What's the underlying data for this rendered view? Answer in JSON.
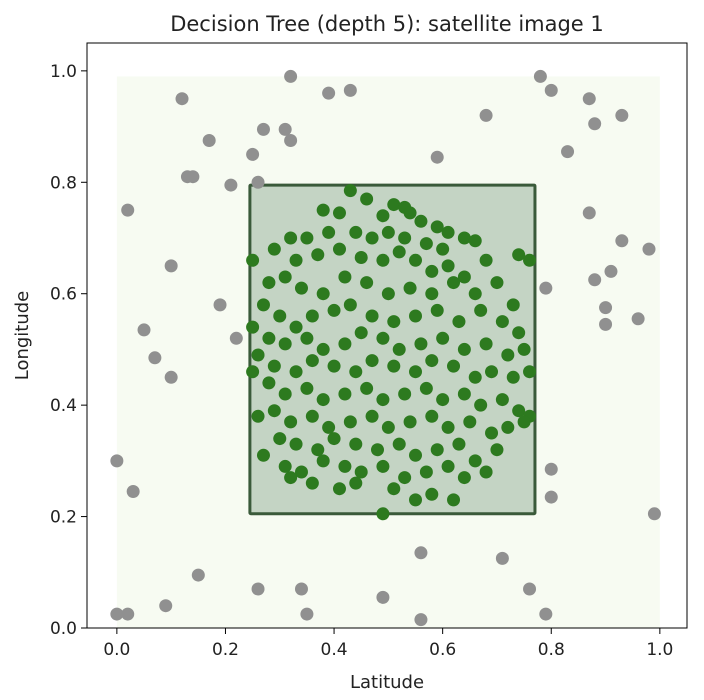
{
  "chart_data": {
    "type": "scatter",
    "title": "Decision Tree (depth 5): satellite image 1",
    "xlabel": "Latitude",
    "ylabel": "Longitude",
    "xlim": [
      -0.055,
      1.05
    ],
    "ylim": [
      0.0,
      1.05
    ],
    "xticks": [
      "0.0",
      "0.2",
      "0.4",
      "0.6",
      "0.8",
      "1.0"
    ],
    "yticks": [
      "0.0",
      "0.2",
      "0.4",
      "0.6",
      "0.8",
      "1.0"
    ],
    "grid": false,
    "background_region": {
      "x": [
        0.0,
        1.0
      ],
      "y": [
        0.0,
        0.99
      ],
      "color": "#f7fbf2"
    },
    "decision_region": {
      "x": [
        0.245,
        0.77
      ],
      "y": [
        0.205,
        0.795
      ],
      "fill": "#c4d4c4",
      "edge": "#3a5a3a"
    },
    "colors": {
      "inside": "#2d7a1f",
      "outside": "#909090"
    },
    "series": [
      {
        "class": "outside",
        "color": "#909090",
        "points": [
          [
            0.32,
            0.99
          ],
          [
            0.39,
            0.96
          ],
          [
            0.43,
            0.965
          ],
          [
            0.78,
            0.99
          ],
          [
            0.8,
            0.965
          ],
          [
            0.12,
            0.95
          ],
          [
            0.87,
            0.95
          ],
          [
            0.68,
            0.92
          ],
          [
            0.93,
            0.92
          ],
          [
            0.88,
            0.905
          ],
          [
            0.17,
            0.875
          ],
          [
            0.27,
            0.895
          ],
          [
            0.31,
            0.895
          ],
          [
            0.32,
            0.875
          ],
          [
            0.59,
            0.845
          ],
          [
            0.83,
            0.855
          ],
          [
            0.25,
            0.85
          ],
          [
            0.13,
            0.81
          ],
          [
            0.14,
            0.81
          ],
          [
            0.21,
            0.795
          ],
          [
            0.26,
            0.8
          ],
          [
            0.02,
            0.75
          ],
          [
            0.87,
            0.745
          ],
          [
            0.1,
            0.65
          ],
          [
            0.93,
            0.695
          ],
          [
            0.98,
            0.68
          ],
          [
            0.88,
            0.625
          ],
          [
            0.91,
            0.64
          ],
          [
            0.79,
            0.61
          ],
          [
            0.05,
            0.535
          ],
          [
            0.19,
            0.58
          ],
          [
            0.9,
            0.575
          ],
          [
            0.9,
            0.545
          ],
          [
            0.96,
            0.555
          ],
          [
            0.22,
            0.52
          ],
          [
            0.07,
            0.485
          ],
          [
            0.1,
            0.45
          ],
          [
            0.0,
            0.3
          ],
          [
            0.03,
            0.245
          ],
          [
            0.8,
            0.285
          ],
          [
            0.8,
            0.235
          ],
          [
            0.99,
            0.205
          ],
          [
            0.15,
            0.095
          ],
          [
            0.56,
            0.135
          ],
          [
            0.71,
            0.125
          ],
          [
            0.0,
            0.025
          ],
          [
            0.02,
            0.025
          ],
          [
            0.09,
            0.04
          ],
          [
            0.26,
            0.07
          ],
          [
            0.34,
            0.07
          ],
          [
            0.35,
            0.025
          ],
          [
            0.49,
            0.055
          ],
          [
            0.56,
            0.015
          ],
          [
            0.76,
            0.07
          ],
          [
            0.79,
            0.025
          ]
        ]
      },
      {
        "class": "inside",
        "color": "#2d7a1f",
        "points": [
          [
            0.43,
            0.785
          ],
          [
            0.46,
            0.77
          ],
          [
            0.51,
            0.76
          ],
          [
            0.53,
            0.755
          ],
          [
            0.54,
            0.745
          ],
          [
            0.38,
            0.75
          ],
          [
            0.41,
            0.745
          ],
          [
            0.49,
            0.74
          ],
          [
            0.56,
            0.73
          ],
          [
            0.59,
            0.72
          ],
          [
            0.61,
            0.71
          ],
          [
            0.64,
            0.7
          ],
          [
            0.32,
            0.7
          ],
          [
            0.35,
            0.7
          ],
          [
            0.39,
            0.71
          ],
          [
            0.44,
            0.71
          ],
          [
            0.47,
            0.7
          ],
          [
            0.5,
            0.71
          ],
          [
            0.53,
            0.7
          ],
          [
            0.57,
            0.69
          ],
          [
            0.6,
            0.68
          ],
          [
            0.66,
            0.695
          ],
          [
            0.29,
            0.68
          ],
          [
            0.33,
            0.66
          ],
          [
            0.37,
            0.67
          ],
          [
            0.41,
            0.68
          ],
          [
            0.45,
            0.665
          ],
          [
            0.49,
            0.66
          ],
          [
            0.52,
            0.675
          ],
          [
            0.55,
            0.66
          ],
          [
            0.58,
            0.64
          ],
          [
            0.61,
            0.65
          ],
          [
            0.64,
            0.63
          ],
          [
            0.68,
            0.66
          ],
          [
            0.74,
            0.67
          ],
          [
            0.76,
            0.66
          ],
          [
            0.25,
            0.66
          ],
          [
            0.28,
            0.62
          ],
          [
            0.31,
            0.63
          ],
          [
            0.34,
            0.61
          ],
          [
            0.38,
            0.6
          ],
          [
            0.42,
            0.63
          ],
          [
            0.46,
            0.62
          ],
          [
            0.5,
            0.6
          ],
          [
            0.54,
            0.61
          ],
          [
            0.58,
            0.6
          ],
          [
            0.62,
            0.62
          ],
          [
            0.66,
            0.6
          ],
          [
            0.7,
            0.62
          ],
          [
            0.73,
            0.58
          ],
          [
            0.27,
            0.58
          ],
          [
            0.3,
            0.56
          ],
          [
            0.33,
            0.54
          ],
          [
            0.36,
            0.56
          ],
          [
            0.4,
            0.57
          ],
          [
            0.43,
            0.58
          ],
          [
            0.47,
            0.56
          ],
          [
            0.51,
            0.55
          ],
          [
            0.55,
            0.56
          ],
          [
            0.59,
            0.57
          ],
          [
            0.63,
            0.55
          ],
          [
            0.67,
            0.57
          ],
          [
            0.71,
            0.55
          ],
          [
            0.74,
            0.53
          ],
          [
            0.25,
            0.54
          ],
          [
            0.28,
            0.52
          ],
          [
            0.31,
            0.51
          ],
          [
            0.35,
            0.52
          ],
          [
            0.38,
            0.5
          ],
          [
            0.42,
            0.51
          ],
          [
            0.45,
            0.53
          ],
          [
            0.49,
            0.52
          ],
          [
            0.52,
            0.5
          ],
          [
            0.56,
            0.51
          ],
          [
            0.6,
            0.52
          ],
          [
            0.64,
            0.5
          ],
          [
            0.68,
            0.51
          ],
          [
            0.72,
            0.49
          ],
          [
            0.75,
            0.5
          ],
          [
            0.26,
            0.49
          ],
          [
            0.29,
            0.47
          ],
          [
            0.33,
            0.46
          ],
          [
            0.36,
            0.48
          ],
          [
            0.4,
            0.47
          ],
          [
            0.44,
            0.46
          ],
          [
            0.47,
            0.48
          ],
          [
            0.51,
            0.47
          ],
          [
            0.55,
            0.46
          ],
          [
            0.58,
            0.48
          ],
          [
            0.62,
            0.47
          ],
          [
            0.66,
            0.45
          ],
          [
            0.69,
            0.46
          ],
          [
            0.73,
            0.45
          ],
          [
            0.76,
            0.46
          ],
          [
            0.25,
            0.46
          ],
          [
            0.28,
            0.44
          ],
          [
            0.31,
            0.42
          ],
          [
            0.35,
            0.43
          ],
          [
            0.38,
            0.41
          ],
          [
            0.42,
            0.42
          ],
          [
            0.46,
            0.43
          ],
          [
            0.49,
            0.41
          ],
          [
            0.53,
            0.42
          ],
          [
            0.57,
            0.43
          ],
          [
            0.6,
            0.41
          ],
          [
            0.64,
            0.42
          ],
          [
            0.67,
            0.4
          ],
          [
            0.71,
            0.41
          ],
          [
            0.74,
            0.39
          ],
          [
            0.76,
            0.38
          ],
          [
            0.26,
            0.38
          ],
          [
            0.29,
            0.39
          ],
          [
            0.32,
            0.37
          ],
          [
            0.36,
            0.38
          ],
          [
            0.39,
            0.36
          ],
          [
            0.43,
            0.37
          ],
          [
            0.47,
            0.38
          ],
          [
            0.5,
            0.36
          ],
          [
            0.54,
            0.37
          ],
          [
            0.58,
            0.38
          ],
          [
            0.61,
            0.36
          ],
          [
            0.65,
            0.37
          ],
          [
            0.69,
            0.35
          ],
          [
            0.72,
            0.36
          ],
          [
            0.75,
            0.37
          ],
          [
            0.3,
            0.34
          ],
          [
            0.33,
            0.33
          ],
          [
            0.37,
            0.32
          ],
          [
            0.4,
            0.34
          ],
          [
            0.44,
            0.33
          ],
          [
            0.48,
            0.32
          ],
          [
            0.52,
            0.33
          ],
          [
            0.55,
            0.31
          ],
          [
            0.59,
            0.32
          ],
          [
            0.63,
            0.33
          ],
          [
            0.66,
            0.3
          ],
          [
            0.7,
            0.32
          ],
          [
            0.27,
            0.31
          ],
          [
            0.31,
            0.29
          ],
          [
            0.34,
            0.28
          ],
          [
            0.38,
            0.3
          ],
          [
            0.42,
            0.29
          ],
          [
            0.45,
            0.28
          ],
          [
            0.49,
            0.29
          ],
          [
            0.53,
            0.27
          ],
          [
            0.57,
            0.28
          ],
          [
            0.61,
            0.29
          ],
          [
            0.64,
            0.27
          ],
          [
            0.68,
            0.28
          ],
          [
            0.32,
            0.27
          ],
          [
            0.36,
            0.26
          ],
          [
            0.41,
            0.25
          ],
          [
            0.44,
            0.26
          ],
          [
            0.51,
            0.25
          ],
          [
            0.55,
            0.23
          ],
          [
            0.58,
            0.24
          ],
          [
            0.62,
            0.23
          ],
          [
            0.49,
            0.205
          ]
        ]
      }
    ]
  }
}
